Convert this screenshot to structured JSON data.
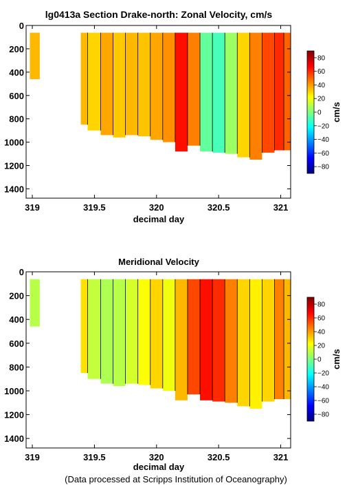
{
  "chart_data": [
    {
      "type": "heatmap",
      "title": "lg0413a Section Drake-north: Zonal Velocity, cm/s",
      "xlabel": "decimal day",
      "ylabel": "",
      "xlim": [
        318.95,
        321.08
      ],
      "ylim": [
        1480,
        0
      ],
      "y_reversed": true,
      "xticks": [
        319,
        319.5,
        320,
        320.5,
        321
      ],
      "xtick_labels": [
        "319",
        "319.5",
        "320",
        "320.5",
        "321"
      ],
      "yticks": [
        0,
        200,
        400,
        600,
        800,
        1000,
        1200,
        1400
      ],
      "ytick_labels": [
        "0",
        "200",
        "400",
        "600",
        "800",
        "1000",
        "1200",
        "1400"
      ],
      "colorbar": {
        "label": "cm/s",
        "range": [
          -90,
          90
        ],
        "ticks": [
          80,
          60,
          40,
          20,
          0,
          -20,
          -40,
          -60,
          -80
        ],
        "tick_labels": [
          "80",
          "60",
          "40",
          "20",
          "0",
          "−20",
          "−40",
          "−60",
          "−80"
        ]
      },
      "columns": [
        {
          "x": 319.02,
          "value": 35,
          "depth": 460
        },
        {
          "x": 319.39,
          "value": 35,
          "depth": 850
        },
        {
          "x": 319.5,
          "value": 30,
          "depth": 900
        },
        {
          "x": 319.6,
          "value": 38,
          "depth": 940
        },
        {
          "x": 319.7,
          "value": 32,
          "depth": 960
        },
        {
          "x": 319.8,
          "value": 35,
          "depth": 940
        },
        {
          "x": 319.9,
          "value": 33,
          "depth": 950
        },
        {
          "x": 320.0,
          "value": 38,
          "depth": 980
        },
        {
          "x": 320.1,
          "value": 42,
          "depth": 1000
        },
        {
          "x": 320.2,
          "value": 65,
          "depth": 1080
        },
        {
          "x": 320.3,
          "value": 45,
          "depth": 1030
        },
        {
          "x": 320.4,
          "value": -5,
          "depth": 1080
        },
        {
          "x": 320.5,
          "value": -10,
          "depth": 1090
        },
        {
          "x": 320.6,
          "value": 5,
          "depth": 1100
        },
        {
          "x": 320.7,
          "value": 30,
          "depth": 1130
        },
        {
          "x": 320.8,
          "value": 45,
          "depth": 1150
        },
        {
          "x": 320.9,
          "value": 55,
          "depth": 1090
        },
        {
          "x": 321.0,
          "value": 60,
          "depth": 1070
        },
        {
          "x": 321.05,
          "value": 50,
          "depth": 1070
        }
      ]
    },
    {
      "type": "heatmap",
      "title": "Meridional Velocity",
      "xlabel": "decimal day",
      "ylabel": "",
      "xlim": [
        318.95,
        321.08
      ],
      "ylim": [
        1480,
        0
      ],
      "y_reversed": true,
      "xticks": [
        319,
        319.5,
        320,
        320.5,
        321
      ],
      "xtick_labels": [
        "319",
        "319.5",
        "320",
        "320.5",
        "321"
      ],
      "yticks": [
        0,
        200,
        400,
        600,
        800,
        1000,
        1200,
        1400
      ],
      "ytick_labels": [
        "0",
        "200",
        "400",
        "600",
        "800",
        "1000",
        "1200",
        "1400"
      ],
      "colorbar": {
        "label": "cm/s",
        "range": [
          -90,
          90
        ],
        "ticks": [
          80,
          60,
          40,
          20,
          0,
          -20,
          -40,
          -60,
          -80
        ],
        "tick_labels": [
          "80",
          "60",
          "40",
          "20",
          "0",
          "−20",
          "−40",
          "−60",
          "−80"
        ]
      },
      "columns": [
        {
          "x": 319.02,
          "value": 10,
          "depth": 460
        },
        {
          "x": 319.39,
          "value": 28,
          "depth": 850
        },
        {
          "x": 319.5,
          "value": 12,
          "depth": 900
        },
        {
          "x": 319.6,
          "value": 8,
          "depth": 940
        },
        {
          "x": 319.7,
          "value": 10,
          "depth": 960
        },
        {
          "x": 319.8,
          "value": 15,
          "depth": 940
        },
        {
          "x": 319.9,
          "value": 22,
          "depth": 950
        },
        {
          "x": 320.0,
          "value": 30,
          "depth": 980
        },
        {
          "x": 320.1,
          "value": 20,
          "depth": 1000
        },
        {
          "x": 320.2,
          "value": 35,
          "depth": 1080
        },
        {
          "x": 320.3,
          "value": 55,
          "depth": 1030
        },
        {
          "x": 320.4,
          "value": 65,
          "depth": 1080
        },
        {
          "x": 320.5,
          "value": 60,
          "depth": 1090
        },
        {
          "x": 320.6,
          "value": 45,
          "depth": 1100
        },
        {
          "x": 320.7,
          "value": 30,
          "depth": 1130
        },
        {
          "x": 320.8,
          "value": 25,
          "depth": 1150
        },
        {
          "x": 320.9,
          "value": 30,
          "depth": 1090
        },
        {
          "x": 321.0,
          "value": 45,
          "depth": 1070
        },
        {
          "x": 321.05,
          "value": 35,
          "depth": 1070
        }
      ]
    }
  ],
  "footer": "(Data processed at Scripps Institution of Oceanography)"
}
